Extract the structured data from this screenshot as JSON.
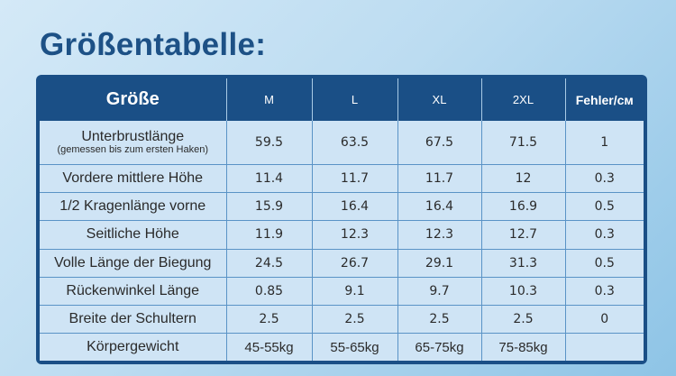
{
  "title": "Größentabelle:",
  "header": {
    "size": "Größe",
    "columns": [
      "M",
      "L",
      "XL",
      "2XL"
    ],
    "error": "Fehler/cм"
  },
  "rows": [
    {
      "label": "Unterbrustlänge",
      "sublabel": "(gemessen bis zum ersten Haken)",
      "values": [
        "59.5",
        "63.5",
        "67.5",
        "71.5"
      ],
      "error": "1"
    },
    {
      "label": "Vordere mittlere Höhe",
      "values": [
        "11.4",
        "11.7",
        "11.7",
        "12"
      ],
      "error": "0.3"
    },
    {
      "label": "1/2 Kragenlänge vorne",
      "values": [
        "15.9",
        "16.4",
        "16.4",
        "16.9"
      ],
      "error": "0.5"
    },
    {
      "label": "Seitliche Höhe",
      "values": [
        "11.9",
        "12.3",
        "12.3",
        "12.7"
      ],
      "error": "0.3"
    },
    {
      "label": "Volle Länge der Biegung",
      "values": [
        "24.5",
        "26.7",
        "29.1",
        "31.3"
      ],
      "error": "0.5"
    },
    {
      "label": "Rückenwinkel Länge",
      "values": [
        "0.85",
        "9.1",
        "9.7",
        "10.3"
      ],
      "error": "0.3"
    },
    {
      "label": "Breite der Schultern",
      "values": [
        "2.5",
        "2.5",
        "2.5",
        "2.5"
      ],
      "error": "0"
    },
    {
      "label": "Körpergewicht",
      "values": [
        "45-55kg",
        "55-65kg",
        "65-75kg",
        "75-85kg"
      ],
      "error": ""
    }
  ]
}
